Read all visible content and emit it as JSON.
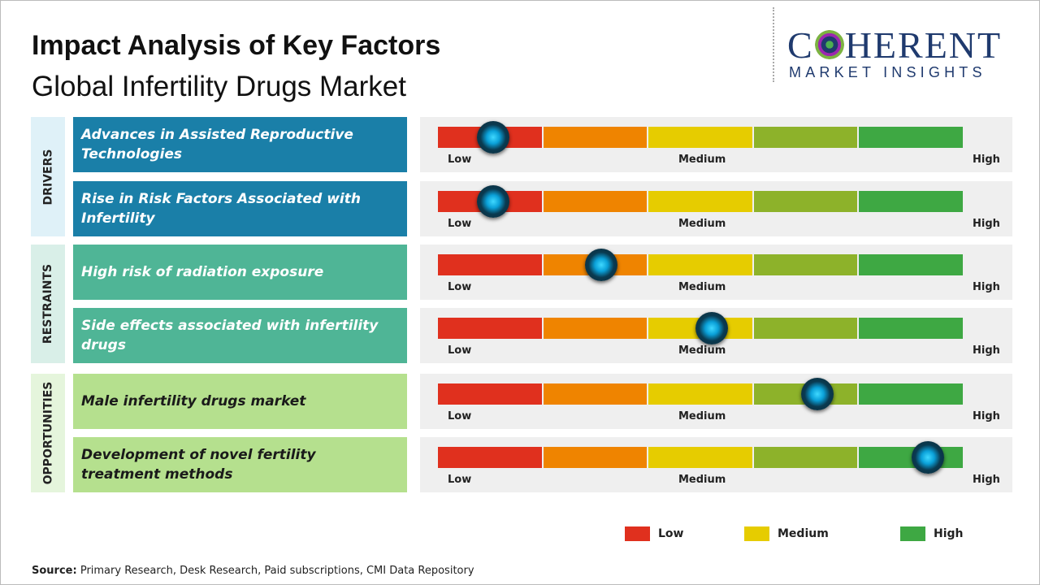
{
  "header": {
    "title": "Impact Analysis of Key Factors",
    "subtitle": "Global Infertility Drugs Market"
  },
  "logo": {
    "name_start": "C",
    "name_end": "HERENT",
    "tagline": "MARKET INSIGHTS"
  },
  "scale_labels": [
    "Low",
    "Medium",
    "High"
  ],
  "xlim": [
    0,
    100
  ],
  "segment_colors": [
    "#e0301e",
    "#ef8400",
    "#e6cc00",
    "#8db22a",
    "#3ea843"
  ],
  "groups": [
    {
      "label": "DRIVERS",
      "side_color": "#dff1f8",
      "box_color": "#1a7fa8",
      "text_color": "#ffffff",
      "factors": [
        {
          "text": "Advances in Assisted Reproductive Technologies",
          "impact": 10.5
        },
        {
          "text": "Rise in Risk Factors Associated with Infertility",
          "impact": 10.5
        }
      ]
    },
    {
      "label": "RESTRAINTS",
      "side_color": "#d9efe8",
      "box_color": "#4fb596",
      "text_color": "#ffffff",
      "factors": [
        {
          "text": "High risk of radiation exposure",
          "impact": 31
        },
        {
          "text": "Side effects associated with infertility drugs",
          "impact": 52
        }
      ]
    },
    {
      "label": "OPPORTUNITIES",
      "side_color": "#e5f5dc",
      "box_color": "#b5e08e",
      "text_color": "#1a1a1a",
      "factors": [
        {
          "text": "Male infertility drugs market",
          "impact": 72
        },
        {
          "text": "Development of novel fertility treatment methods",
          "impact": 93
        }
      ]
    }
  ],
  "legend": [
    {
      "label": "Low",
      "color": "#e0301e"
    },
    {
      "label": "Medium",
      "color": "#e6cc00"
    },
    {
      "label": "High",
      "color": "#3ea843"
    }
  ],
  "source": {
    "label": "Source:",
    "text": "Primary Research, Desk Research, Paid subscriptions, CMI Data Repository"
  }
}
